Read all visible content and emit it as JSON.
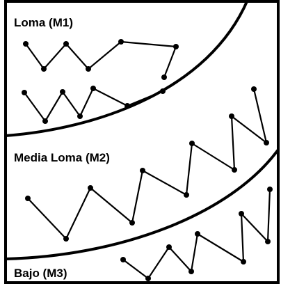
{
  "zones": {
    "upper": {
      "label": "Loma (M1)"
    },
    "middle": {
      "label": "Media Loma (M2)"
    },
    "lower": {
      "label": "Bajo (M3)"
    }
  },
  "colors": {
    "stroke": "#000000",
    "background": "#ffffff"
  }
}
